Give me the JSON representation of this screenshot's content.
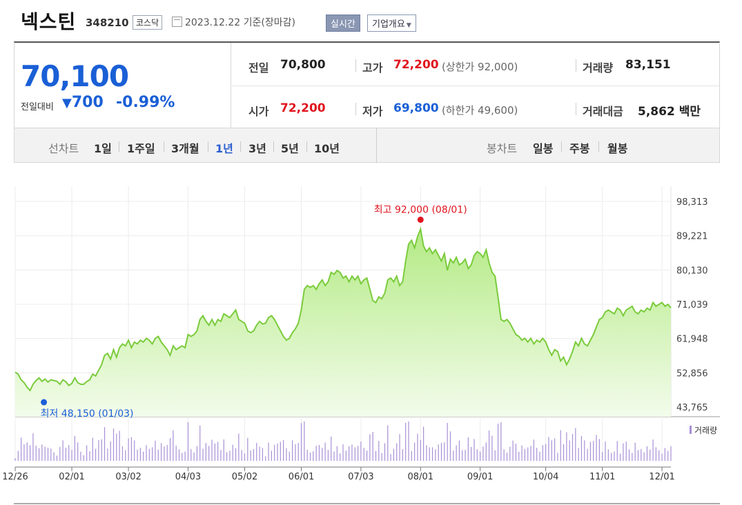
{
  "header": {
    "name": "넥스틴",
    "code": "348210",
    "market": "코스닥",
    "date_text": "2023.12.22 기준(장마감)",
    "realtime_button": "실시간",
    "company_button": "기업개요"
  },
  "summary": {
    "price": "70,100",
    "change_label": "전일대비",
    "change_value": "700",
    "change_pct": "-0.99%",
    "rows": [
      [
        {
          "label": "전일",
          "value": "70,800",
          "color": "#222222"
        },
        {
          "label": "고가",
          "value": "72,200",
          "color": "#e0141e",
          "sub": "(상한가 92,000)"
        },
        {
          "label": "거래량",
          "value": "83,151",
          "color": "#222222"
        }
      ],
      [
        {
          "label": "시가",
          "value": "72,200",
          "color": "#e0141e"
        },
        {
          "label": "저가",
          "value": "69,800",
          "color": "#1a5fd6",
          "sub": "(하한가 49,600)"
        },
        {
          "label": "거래대금",
          "value": "5,862",
          "color": "#222222",
          "unit": "백만"
        }
      ]
    ]
  },
  "tabs": {
    "line_label": "선차트",
    "line_tabs": [
      "1일",
      "1주일",
      "3개월",
      "1년",
      "3년",
      "5년",
      "10년"
    ],
    "line_selected": "1년",
    "candle_label": "봉차트",
    "candle_tabs": [
      "일봉",
      "주봉",
      "월봉"
    ]
  },
  "colors": {
    "up": "#e0141e",
    "down": "#1a5fd6",
    "line": "#7acb3c",
    "area_top": "#b8ec8c",
    "volume": "#a88fd6"
  },
  "chart_data": {
    "type": "area",
    "y_ticks": [
      "98,313",
      "89,221",
      "80,130",
      "71,039",
      "61,948",
      "52,856",
      "43,765"
    ],
    "ylim": [
      43765,
      98313
    ],
    "x_ticks": [
      "12/26",
      "02/01",
      "03/02",
      "04/03",
      "05/02",
      "06/01",
      "07/03",
      "08/01",
      "09/01",
      "10/04",
      "11/01",
      "12/01"
    ],
    "x_tick_index": [
      0,
      19,
      38,
      58,
      77,
      96,
      116,
      136,
      156,
      178,
      197,
      217
    ],
    "values": [
      53000,
      52500,
      51000,
      50200,
      49000,
      48150,
      49800,
      50800,
      51500,
      50600,
      51200,
      50400,
      51000,
      50800,
      50600,
      49800,
      51000,
      50500,
      49500,
      50000,
      51500,
      50200,
      49800,
      49800,
      50500,
      51000,
      52500,
      52000,
      53500,
      55000,
      57500,
      58000,
      56500,
      59000,
      57000,
      59500,
      60500,
      60000,
      61500,
      59500,
      61000,
      60500,
      61500,
      61000,
      62000,
      61500,
      60500,
      62000,
      62500,
      61000,
      60000,
      59000,
      57500,
      60000,
      59000,
      59500,
      60000,
      59500,
      63000,
      62500,
      63000,
      64000,
      67000,
      68000,
      66500,
      65500,
      67000,
      65500,
      67000,
      66500,
      68500,
      68000,
      67500,
      68500,
      69500,
      67000,
      66500,
      66000,
      64000,
      63500,
      64000,
      65500,
      66500,
      65800,
      66000,
      67500,
      68000,
      67000,
      65500,
      64000,
      62500,
      61500,
      62000,
      63500,
      64500,
      66000,
      69500,
      75000,
      76000,
      75500,
      76000,
      75000,
      76500,
      77500,
      76000,
      77000,
      79500,
      79000,
      80000,
      79500,
      78000,
      78500,
      77000,
      78500,
      77500,
      78500,
      76500,
      77500,
      78000,
      75000,
      72000,
      71500,
      73000,
      72500,
      74000,
      77500,
      78000,
      77000,
      78500,
      76000,
      77000,
      82500,
      87000,
      88000,
      86000,
      89000,
      91000,
      86500,
      85000,
      86000,
      84500,
      85500,
      84000,
      82500,
      84500,
      80000,
      83000,
      82000,
      83500,
      81500,
      82000,
      83000,
      80500,
      81500,
      84000,
      85000,
      84500,
      83500,
      85500,
      82000,
      79500,
      78500,
      73000,
      67000,
      66500,
      67000,
      66000,
      64500,
      63000,
      62500,
      61500,
      62000,
      61000,
      62000,
      60500,
      61500,
      61000,
      62000,
      61000,
      59000,
      57500,
      59000,
      58500,
      56000,
      57000,
      55000,
      56500,
      58500,
      61000,
      60000,
      62000,
      60500,
      60000,
      61500,
      63000,
      65000,
      67000,
      67500,
      69000,
      69500,
      69000,
      68500,
      70000,
      69500,
      68000,
      69500,
      70000,
      70500,
      69000,
      68500,
      69500,
      69000,
      70000,
      69500,
      71500,
      70500,
      71000,
      71500,
      70500,
      71000,
      70100
    ],
    "high": {
      "label": "최고 92,000 (08/01)",
      "value": 92000,
      "index": 136
    },
    "low": {
      "label": "최저 48,150 (01/03)",
      "value": 48150,
      "index": 5
    },
    "volume_label": "거래량"
  }
}
